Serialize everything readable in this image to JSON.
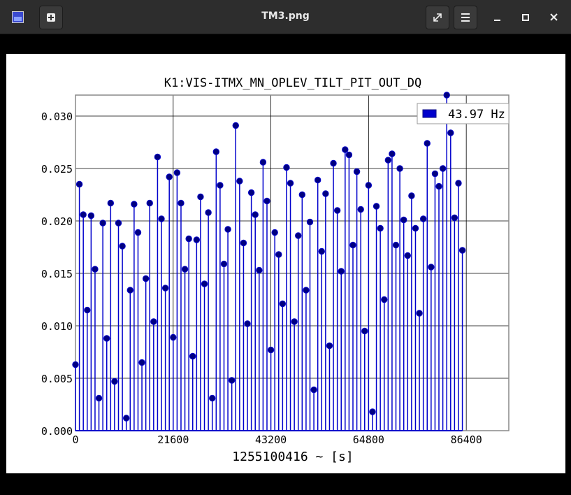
{
  "window": {
    "title": "TM3.png"
  },
  "chart_data": {
    "type": "stem",
    "title": "K1:VIS-ITMX_MN_OPLEV_TILT_PIT_OUT_DQ",
    "xlabel": "1255100416 ~ [s]",
    "legend": "upper right",
    "grid": true,
    "xlim": [
      0,
      95800
    ],
    "xticks": [
      0,
      21600,
      43200,
      64800,
      86400
    ],
    "ylim": [
      0,
      0.032
    ],
    "yticks": [
      {
        "value": 0,
        "label": "0.000"
      },
      {
        "value": 0.005,
        "label": "0.005"
      },
      {
        "value": 0.01,
        "label": "0.010"
      },
      {
        "value": 0.015,
        "label": "0.015"
      },
      {
        "value": 0.02,
        "label": "0.020"
      },
      {
        "value": 0.025,
        "label": "0.025"
      },
      {
        "value": 0.03,
        "label": "0.030"
      }
    ],
    "series": [
      {
        "name": "43.97 Hz",
        "color": "#0000cc",
        "marker_color": "#000080",
        "x": [
          0,
          864,
          1728,
          2592,
          3456,
          4320,
          5184,
          6048,
          6912,
          7776,
          8640,
          9504,
          10368,
          11232,
          12096,
          12960,
          13824,
          14688,
          15552,
          16416,
          17280,
          18144,
          19008,
          19872,
          20736,
          21600,
          22464,
          23328,
          24192,
          25056,
          25920,
          26784,
          27648,
          28512,
          29376,
          30240,
          31104,
          31968,
          32832,
          33696,
          34560,
          35424,
          36288,
          37152,
          38016,
          38880,
          39744,
          40608,
          41472,
          42336,
          43200,
          44064,
          44928,
          45792,
          46656,
          47520,
          48384,
          49248,
          50112,
          50976,
          51840,
          52704,
          53568,
          54432,
          55296,
          56160,
          57024,
          57888,
          58752,
          59616,
          60480,
          61344,
          62208,
          63072,
          63936,
          64800,
          65664,
          66528,
          67392,
          68256,
          69120,
          69984,
          70848,
          71712,
          72576,
          73440,
          74304,
          75168,
          76032,
          76896,
          77760,
          78624,
          79488,
          80352,
          81216,
          82080,
          82944,
          83808,
          84672,
          85536
        ],
        "values": [
          0.0063,
          0.0235,
          0.0206,
          0.0115,
          0.0205,
          0.0154,
          0.0031,
          0.0198,
          0.0088,
          0.0217,
          0.0047,
          0.0198,
          0.0176,
          0.0012,
          0.0134,
          0.0216,
          0.0189,
          0.0065,
          0.0145,
          0.0217,
          0.0104,
          0.0261,
          0.0202,
          0.0136,
          0.0242,
          0.0089,
          0.0246,
          0.0217,
          0.0154,
          0.0183,
          0.0071,
          0.0182,
          0.0223,
          0.014,
          0.0208,
          0.0031,
          0.0266,
          0.0234,
          0.0159,
          0.0192,
          0.0048,
          0.0291,
          0.0238,
          0.0179,
          0.0102,
          0.0227,
          0.0206,
          0.0153,
          0.0256,
          0.0219,
          0.0077,
          0.0189,
          0.0168,
          0.0121,
          0.0251,
          0.0236,
          0.0104,
          0.0186,
          0.0225,
          0.0134,
          0.0199,
          0.0039,
          0.0239,
          0.0171,
          0.0226,
          0.0081,
          0.0255,
          0.021,
          0.0152,
          0.0268,
          0.0263,
          0.0177,
          0.0247,
          0.0211,
          0.0095,
          0.0234,
          0.0018,
          0.0214,
          0.0193,
          0.0125,
          0.0258,
          0.0264,
          0.0177,
          0.025,
          0.0201,
          0.0167,
          0.0224,
          0.0193,
          0.0112,
          0.0202,
          0.0274,
          0.0156,
          0.0245,
          0.0233,
          0.025,
          0.032,
          0.0284,
          0.0203,
          0.0236,
          0.0172
        ]
      }
    ]
  }
}
